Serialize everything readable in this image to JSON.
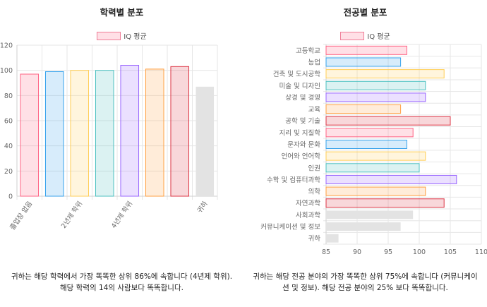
{
  "charts": {
    "left": {
      "title": "학력별 분포",
      "legend_label": "IQ 평균",
      "caption": "귀하는 해당 학력에서 가장 똑똑한 상위 86%에 속합니다 (4년제 학위). 해당 학력의 14의 사람보다 똑똑합니다."
    },
    "right": {
      "title": "전공별 분포",
      "legend_label": "IQ 평균",
      "caption": "귀하는 해당 전공 분야의 가장 똑똑한 상위 75%에 속합니다 (커뮤니케이션 및 정보). 해당 전공 분야의 25% 보다 똑똑합니다."
    }
  },
  "colors": {
    "fills": [
      "rgba(255,99,132,0.2)",
      "rgba(54,162,235,0.2)",
      "rgba(255,206,86,0.2)",
      "rgba(75,192,192,0.2)",
      "rgba(153,102,255,0.2)",
      "rgba(255,159,64,0.2)",
      "rgba(220,53,69,0.2)"
    ],
    "borders": [
      "#ff6384",
      "#36a2eb",
      "#ffce56",
      "#4bc0c0",
      "#9966ff",
      "#ff9f40",
      "#dc3545"
    ],
    "user_fill": "#e3e3e3",
    "grid": "#e6e6e6",
    "axis_text": "#666666"
  },
  "chart_data": [
    {
      "type": "bar",
      "title": "학력별 분포",
      "legend": [
        "IQ 평균"
      ],
      "legend_position": "top",
      "categories": [
        "졸업장 없음",
        "",
        "2년제 학위",
        "",
        "4년제 학위",
        "",
        "",
        "귀하"
      ],
      "series": [
        {
          "name": "IQ 평균",
          "values": [
            97,
            99,
            100,
            100,
            104,
            101,
            103,
            87
          ]
        }
      ],
      "ylim": [
        0,
        120
      ],
      "yticks": [
        0,
        20,
        40,
        60,
        80,
        100,
        120
      ],
      "grid": true,
      "highlight_index": 7
    },
    {
      "type": "bar",
      "orientation": "horizontal",
      "title": "전공별 분포",
      "legend": [
        "IQ 평균"
      ],
      "legend_position": "top",
      "categories": [
        "고등학교",
        "농업",
        "건축 및 도시공학",
        "미술 및 디자인",
        "상경 및 경영",
        "교육",
        "공학 및 기술",
        "지리 및 지질학",
        "문자와 문화",
        "언어와 언어학",
        "인권",
        "수학 및 컴퓨터과학",
        "의학",
        "자연과학",
        "사회과학",
        "커뮤니케이션 및 정보",
        "귀하"
      ],
      "series": [
        {
          "name": "IQ 평균",
          "values": [
            98,
            97,
            104,
            101,
            101,
            97,
            105,
            99,
            98,
            101,
            100,
            106,
            101,
            104,
            99,
            97,
            87
          ]
        }
      ],
      "xlim": [
        85,
        110
      ],
      "xticks": [
        85,
        90,
        95,
        100,
        105,
        110
      ],
      "grid": true,
      "gray_indices": [
        14,
        15,
        16
      ]
    }
  ]
}
